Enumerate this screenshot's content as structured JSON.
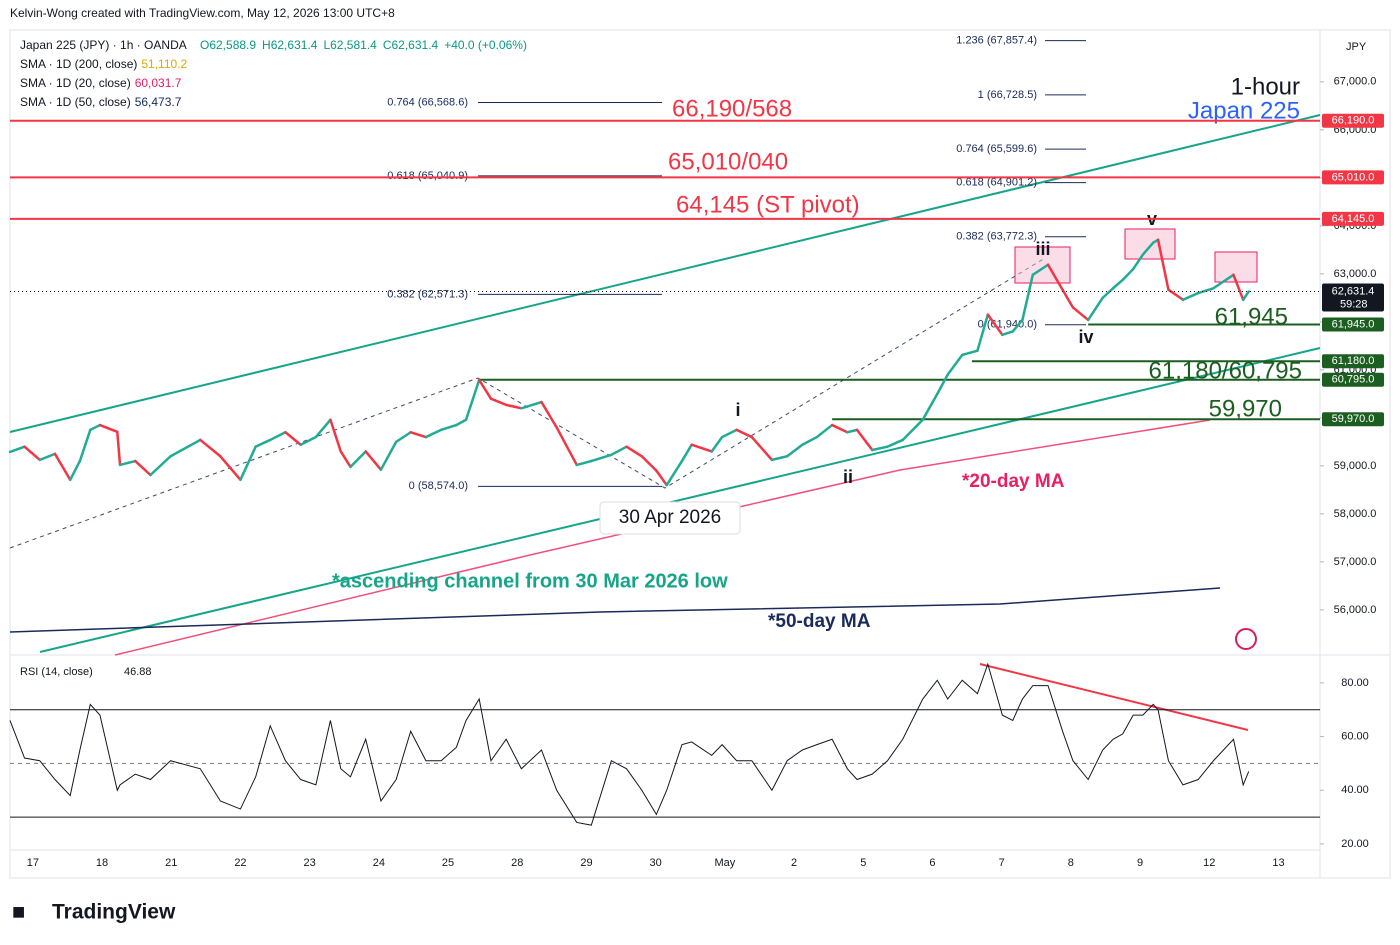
{
  "header": {
    "credit": "Kelvin-Wong created with TradingView.com, May 12, 2026 13:00 UTC+8",
    "symbol": "Japan 225 (JPY) · 1h · OANDA",
    "ohlc": [
      "O62,588.9",
      "H62,631.4",
      "L62,581.4",
      "C62,631.4",
      "+40.0 (+0.06%)"
    ],
    "currency": "JPY"
  },
  "indicators": [
    {
      "name": "SMA · 1D (200, close)",
      "value": "51,110.2",
      "color": "#e0a800"
    },
    {
      "name": "SMA · 1D (20, close)",
      "value": "60,031.7",
      "color": "#e91e63"
    },
    {
      "name": "SMA · 1D (50, close)",
      "value": "56,473.7",
      "color": "#1a2a5a"
    }
  ],
  "annotations": {
    "timeframe": "1-hour",
    "instrument": "Japan 225",
    "r1": "66,190/568",
    "r2": "65,010/040",
    "r3": "64,145 (ST pivot)",
    "s1": "61,945",
    "s2": "61,180/60,795",
    "s3": "59,970",
    "date": "30 Apr 2026",
    "ma20": "*20-day MA",
    "ma50": "*50-day MA",
    "channel": "*ascending channel from 30 Mar 2026 low",
    "waves": [
      "i",
      "ii",
      "iii",
      "iv",
      "v"
    ]
  },
  "chart_data": [
    {
      "type": "line",
      "categories": [
        "17",
        "18",
        "21",
        "22",
        "23",
        "24",
        "25",
        "28",
        "29",
        "30",
        "May",
        "2",
        "5",
        "6",
        "7",
        "8",
        "9",
        "12",
        "13"
      ],
      "x": [
        -0.33,
        -0.12,
        0.1,
        0.32,
        0.54,
        0.68,
        0.83,
        0.97,
        1.22,
        1.26,
        1.48,
        1.7,
        1.99,
        2.42,
        2.71,
        3.0,
        3.22,
        3.43,
        3.65,
        3.87,
        4.09,
        4.3,
        4.45,
        4.59,
        4.81,
        5.03,
        5.25,
        5.46,
        5.68,
        5.9,
        6.12,
        6.26,
        6.45,
        6.62,
        6.84,
        7.06,
        7.35,
        7.57,
        7.86,
        8.07,
        8.36,
        8.58,
        8.8,
        9.01,
        9.16,
        9.38,
        9.52,
        9.81,
        9.96,
        10.17,
        10.39,
        10.68,
        10.9,
        11.12,
        11.33,
        11.55,
        11.77,
        11.91,
        12.13,
        12.35,
        12.57,
        12.86,
        13.07,
        13.22,
        13.43,
        13.65,
        13.8,
        14.01,
        14.16,
        14.3,
        14.45,
        14.67,
        14.88,
        15.03,
        15.25,
        15.46,
        15.61,
        15.75,
        15.9,
        16.04,
        16.19,
        16.26,
        16.41,
        16.62,
        16.84,
        17.06,
        17.35,
        17.49,
        17.57
      ],
      "series": [
        {
          "values": [
            59290,
            59400,
            59125,
            59250,
            58710,
            59100,
            59750,
            59850,
            59710,
            59020,
            59100,
            58810,
            59200,
            59540,
            59200,
            58710,
            59400,
            59540,
            59700,
            59440,
            59600,
            59960,
            59300,
            58980,
            59300,
            58920,
            59500,
            59700,
            59600,
            59750,
            59850,
            59960,
            60790,
            60400,
            60270,
            60200,
            60330,
            59800,
            59020,
            59100,
            59230,
            59400,
            59200,
            58900,
            58600,
            59100,
            59440,
            59300,
            59600,
            59750,
            59600,
            59125,
            59200,
            59440,
            59600,
            59850,
            59700,
            59750,
            59330,
            59400,
            59540,
            59960,
            60500,
            60900,
            61310,
            61400,
            62150,
            61730,
            61800,
            62040,
            62980,
            63190,
            62670,
            62300,
            62040,
            62500,
            62700,
            62875,
            63100,
            63400,
            63650,
            63710,
            62670,
            62460,
            62600,
            62700,
            62980,
            62460,
            62631.4
          ],
          "up_color": "#22ab94",
          "down_color": "#f23645"
        }
      ],
      "xlim": [
        -0.33,
        18.6
      ],
      "ylim": [
        55060,
        68080
      ],
      "yticks": [
        {
          "value": 67000,
          "label": "67,000.0"
        },
        {
          "value": 66000,
          "label": "66,000.0"
        },
        {
          "value": 65000,
          "label": "65,000.0"
        },
        {
          "value": 64000,
          "label": "64,000.0"
        },
        {
          "value": 63000,
          "label": "63,000.0"
        },
        {
          "value": 62000,
          "label": "62,000.0"
        },
        {
          "value": 61000,
          "label": "61,000.0"
        },
        {
          "value": 60000,
          "label": "60,000.0"
        },
        {
          "value": 59000,
          "label": "59,000.0"
        },
        {
          "value": 58000,
          "label": "58,000.0"
        },
        {
          "value": 57000,
          "label": "57,000.0"
        },
        {
          "value": 56000,
          "label": "56,000.0"
        }
      ],
      "last_price": {
        "value": 62631.4,
        "label": "62,631.4",
        "countdown": "59:28"
      },
      "levels": [
        {
          "value": 66190,
          "label": "66,190.0",
          "color": "#f23645",
          "start": -0.33
        },
        {
          "value": 65010,
          "label": "65,010.0",
          "color": "#f23645",
          "start": -0.33
        },
        {
          "value": 64145,
          "label": "64,145.0",
          "color": "#f23645",
          "start": -0.33
        },
        {
          "value": 61945,
          "label": "61,945.0",
          "color": "#1b5e20",
          "start": 15.25
        },
        {
          "value": 61180,
          "label": "61,180.0",
          "color": "#1b5e20",
          "start": 13.57
        },
        {
          "value": 60795,
          "label": "60,795.0",
          "color": "#1b5e20",
          "start": 6.45
        },
        {
          "value": 59970,
          "label": "59,970.0",
          "color": "#1b5e20",
          "start": 11.55
        }
      ],
      "fib_left": [
        {
          "value": 66568.6,
          "label": "0.764 (66,568.6)"
        },
        {
          "value": 65040.9,
          "label": "0.618 (65,040.9)"
        },
        {
          "value": 62571.3,
          "label": "0.382 (62,571.3)"
        },
        {
          "value": 58574.0,
          "label": "0 (58,574.0)"
        }
      ],
      "fib_right": [
        {
          "value": 67857.4,
          "label": "1.236 (67,857.4)"
        },
        {
          "value": 66728.5,
          "label": "1 (66,728.5)"
        },
        {
          "value": 65599.6,
          "label": "0.764 (65,599.6)"
        },
        {
          "value": 64901.2,
          "label": "0.618 (64,901.2)"
        },
        {
          "value": 63772.3,
          "label": "0.382 (63,772.3)"
        },
        {
          "value": 61940.0,
          "label": "0 (61,940.0)"
        }
      ]
    },
    {
      "type": "line",
      "title": "RSI (14, close)",
      "last_value": 46.88,
      "color": "#131722",
      "values": [
        66,
        52,
        51,
        44,
        38,
        55,
        72,
        68,
        40,
        42,
        46,
        44,
        51,
        48,
        36,
        33,
        45,
        64,
        51,
        44,
        42,
        66,
        48,
        45,
        59,
        36,
        44,
        62,
        51,
        51,
        56,
        66,
        74,
        51,
        59,
        48,
        55,
        40,
        28,
        27,
        51,
        48,
        40,
        31,
        40,
        57,
        58,
        53,
        57,
        51,
        51,
        40,
        51,
        55,
        57,
        59,
        48,
        44,
        46,
        51,
        59,
        74,
        81,
        74,
        81,
        76,
        87,
        68,
        66,
        74,
        79,
        79,
        62,
        51,
        44,
        55,
        59,
        61,
        68,
        68,
        72,
        70,
        51,
        42,
        44,
        51,
        59,
        42,
        47
      ],
      "ylim": [
        7.3,
        90.4
      ],
      "yticks": [
        {
          "value": 80,
          "label": "80.00"
        },
        {
          "value": 60,
          "label": "60.00"
        },
        {
          "value": 40,
          "label": "40.00"
        },
        {
          "value": 20,
          "label": "20.00"
        }
      ],
      "bands": [
        70,
        30
      ],
      "mid": 50
    }
  ],
  "footer": {
    "logo": "TradingView"
  }
}
